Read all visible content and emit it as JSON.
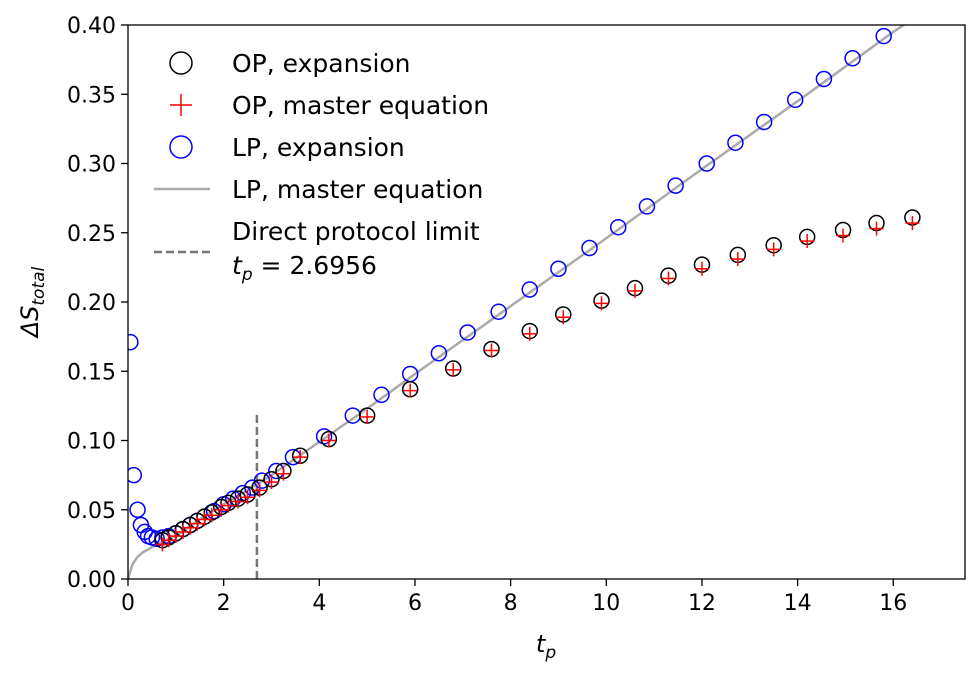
{
  "chart_data": {
    "type": "scatter",
    "xlabel_main": "t",
    "xlabel_sub": "p",
    "ylabel_main": "ΔS",
    "ylabel_sub": "total",
    "xlim": [
      0,
      17.5
    ],
    "ylim": [
      0,
      0.4
    ],
    "xticks": [
      0,
      2,
      4,
      6,
      8,
      10,
      12,
      14,
      16
    ],
    "xtick_labels": [
      "0",
      "2",
      "4",
      "6",
      "8",
      "10",
      "12",
      "14",
      "16"
    ],
    "yticks": [
      0,
      0.05,
      0.1,
      0.15,
      0.2,
      0.25,
      0.3,
      0.35,
      0.4
    ],
    "ytick_labels": [
      "0.00",
      "0.05",
      "0.10",
      "0.15",
      "0.20",
      "0.25",
      "0.30",
      "0.35",
      "0.40"
    ],
    "colors": {
      "op_marker": "#000000",
      "me_marker": "#ff0000",
      "lp_marker": "#0000ff",
      "lp_line": "#aaaaaa",
      "limit_line": "#777777"
    },
    "legend_position": "top-left",
    "legend": {
      "op_expansion": "OP, expansion",
      "op_master": "OP, master equation",
      "lp_expansion": "LP, expansion",
      "lp_master": "LP, master equation",
      "direct_limit_line1": "Direct protocol limit",
      "direct_limit_line2_prefix": "t",
      "direct_limit_line2_sub": "p",
      "direct_limit_line2_suffix": " = 2.6956"
    },
    "direct_protocol_limit": {
      "x": 2.6956,
      "y_range": [
        0,
        0.12
      ]
    },
    "series": [
      {
        "name": "OP, expansion",
        "marker": "circle-open",
        "x": [
          0.72,
          0.85,
          1.0,
          1.15,
          1.3,
          1.45,
          1.6,
          1.75,
          1.95,
          2.1,
          2.3,
          2.5,
          2.75,
          3.0,
          3.25,
          3.6,
          4.2,
          5.0,
          5.9,
          6.8,
          7.6,
          8.4,
          9.1,
          9.9,
          10.6,
          11.3,
          12.0,
          12.75,
          13.5,
          14.2,
          14.95,
          15.65,
          16.4
        ],
        "y": [
          0.028,
          0.03,
          0.033,
          0.036,
          0.039,
          0.042,
          0.045,
          0.048,
          0.052,
          0.055,
          0.058,
          0.061,
          0.066,
          0.072,
          0.078,
          0.089,
          0.101,
          0.118,
          0.137,
          0.152,
          0.166,
          0.179,
          0.191,
          0.201,
          0.21,
          0.219,
          0.227,
          0.234,
          0.241,
          0.247,
          0.252,
          0.257,
          0.261
        ]
      },
      {
        "name": "OP, master equation",
        "marker": "plus",
        "x": [
          0.72,
          0.85,
          1.0,
          1.15,
          1.3,
          1.45,
          1.6,
          1.75,
          1.95,
          2.1,
          2.3,
          2.5,
          2.75,
          3.0,
          3.25,
          3.6,
          4.2,
          5.0,
          5.9,
          6.8,
          7.6,
          8.4,
          9.1,
          9.9,
          10.6,
          11.3,
          12.0,
          12.75,
          13.5,
          14.2,
          14.95,
          15.65,
          16.4
        ],
        "y": [
          0.025,
          0.028,
          0.031,
          0.034,
          0.037,
          0.04,
          0.043,
          0.046,
          0.05,
          0.053,
          0.056,
          0.059,
          0.064,
          0.07,
          0.076,
          0.088,
          0.1,
          0.117,
          0.136,
          0.151,
          0.165,
          0.177,
          0.189,
          0.199,
          0.208,
          0.217,
          0.224,
          0.231,
          0.238,
          0.244,
          0.248,
          0.253,
          0.257
        ]
      },
      {
        "name": "LP, expansion",
        "marker": "circle-open",
        "x": [
          0.05,
          0.12,
          0.2,
          0.27,
          0.35,
          0.42,
          0.5,
          0.6,
          0.72,
          0.85,
          1.0,
          1.15,
          1.3,
          1.45,
          1.6,
          1.8,
          2.0,
          2.2,
          2.4,
          2.6,
          2.8,
          3.1,
          3.45,
          4.1,
          4.7,
          5.3,
          5.9,
          6.5,
          7.1,
          7.75,
          8.4,
          9.0,
          9.65,
          10.25,
          10.85,
          11.45,
          12.1,
          12.7,
          13.3,
          13.95,
          14.55,
          15.15,
          15.8
        ],
        "y": [
          0.171,
          0.075,
          0.05,
          0.039,
          0.034,
          0.031,
          0.03,
          0.029,
          0.03,
          0.031,
          0.033,
          0.036,
          0.039,
          0.042,
          0.045,
          0.049,
          0.054,
          0.058,
          0.062,
          0.066,
          0.071,
          0.078,
          0.088,
          0.103,
          0.118,
          0.133,
          0.148,
          0.163,
          0.178,
          0.193,
          0.209,
          0.224,
          0.239,
          0.254,
          0.269,
          0.284,
          0.3,
          0.315,
          0.33,
          0.346,
          0.361,
          0.376,
          0.392
        ]
      },
      {
        "name": "LP, master equation",
        "marker": "line",
        "x": [
          0,
          0.05,
          0.1,
          0.2,
          0.3,
          0.4,
          0.5,
          0.6,
          0.8,
          1.0,
          1.5,
          2.0,
          2.5,
          3.0,
          4.0,
          5.0,
          6.0,
          8.0,
          10.0,
          12.0,
          14.0,
          16.0,
          16.35
        ],
        "y": [
          0.0,
          0.006,
          0.011,
          0.016,
          0.019,
          0.021,
          0.023,
          0.025,
          0.028,
          0.031,
          0.043,
          0.054,
          0.064,
          0.075,
          0.099,
          0.123,
          0.148,
          0.197,
          0.246,
          0.296,
          0.345,
          0.395,
          0.403
        ]
      }
    ]
  }
}
